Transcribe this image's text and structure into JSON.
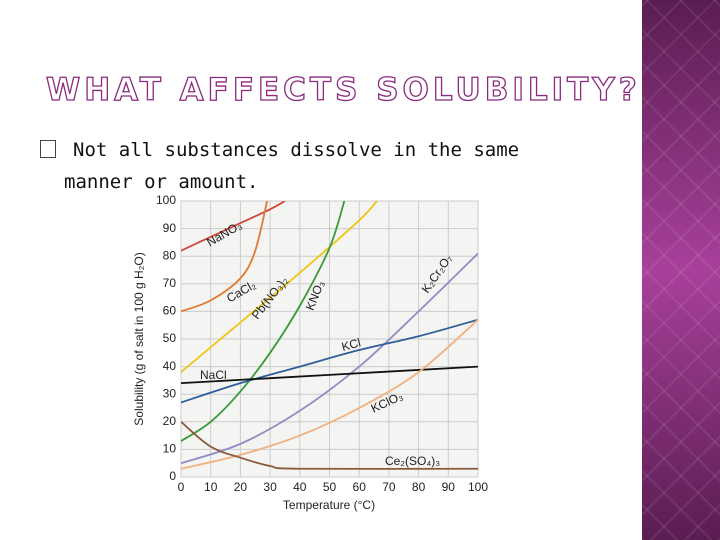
{
  "slide": {
    "title": "WHAT AFFECTS SOLUBILITY?",
    "bullet": "Not all substances dissolve in the same manner or amount."
  },
  "chart_data": {
    "type": "line",
    "x_label": "Temperature (°C)",
    "y_label": "Solubility (g of salt in 100 g H₂O)",
    "xlim": [
      0,
      100
    ],
    "xticks": [
      0,
      10,
      20,
      30,
      40,
      50,
      60,
      70,
      80,
      90,
      100
    ],
    "ylim": [
      0,
      100
    ],
    "yticks": [
      0,
      10,
      20,
      30,
      40,
      50,
      60,
      70,
      80,
      90,
      100
    ],
    "grid": true,
    "series": [
      {
        "name": "NaNO₃",
        "color": "#d0463c",
        "x": [
          0,
          10,
          20,
          30,
          35
        ],
        "values": [
          82,
          87,
          92,
          97,
          100
        ]
      },
      {
        "name": "CaCl₂",
        "color": "#e07a2e",
        "x": [
          0,
          10,
          20,
          25,
          29
        ],
        "values": [
          60,
          64,
          72,
          82,
          100
        ]
      },
      {
        "name": "Pb(NO₃)₂",
        "color": "#f0c419",
        "x": [
          0,
          20,
          40,
          60,
          66
        ],
        "values": [
          38,
          56,
          74,
          93,
          100
        ]
      },
      {
        "name": "KNO₃",
        "color": "#3a9a3a",
        "x": [
          0,
          10,
          20,
          30,
          40,
          50,
          55
        ],
        "values": [
          13,
          20,
          31,
          45,
          62,
          83,
          100
        ]
      },
      {
        "name": "K₂Cr₂O₇",
        "color": "#8d8fc6",
        "x": [
          0,
          20,
          40,
          60,
          80,
          100
        ],
        "values": [
          5,
          12,
          24,
          40,
          60,
          81
        ]
      },
      {
        "name": "KCl",
        "color": "#2e5f9a",
        "x": [
          0,
          20,
          40,
          60,
          80,
          100
        ],
        "values": [
          27,
          34,
          40,
          46,
          51,
          57
        ]
      },
      {
        "name": "NaCl",
        "color": "#111111",
        "x": [
          0,
          50,
          100
        ],
        "values": [
          34,
          37,
          40
        ]
      },
      {
        "name": "KClO₃",
        "color": "#f2b07c",
        "x": [
          0,
          20,
          40,
          60,
          80,
          100
        ],
        "values": [
          3,
          8,
          15,
          25,
          38,
          57
        ]
      },
      {
        "name": "Ce₂(SO₄)₃",
        "color": "#8b5a3c",
        "x": [
          0,
          10,
          20,
          30,
          40,
          100
        ],
        "values": [
          20,
          11,
          7,
          4,
          3,
          3
        ]
      }
    ]
  }
}
